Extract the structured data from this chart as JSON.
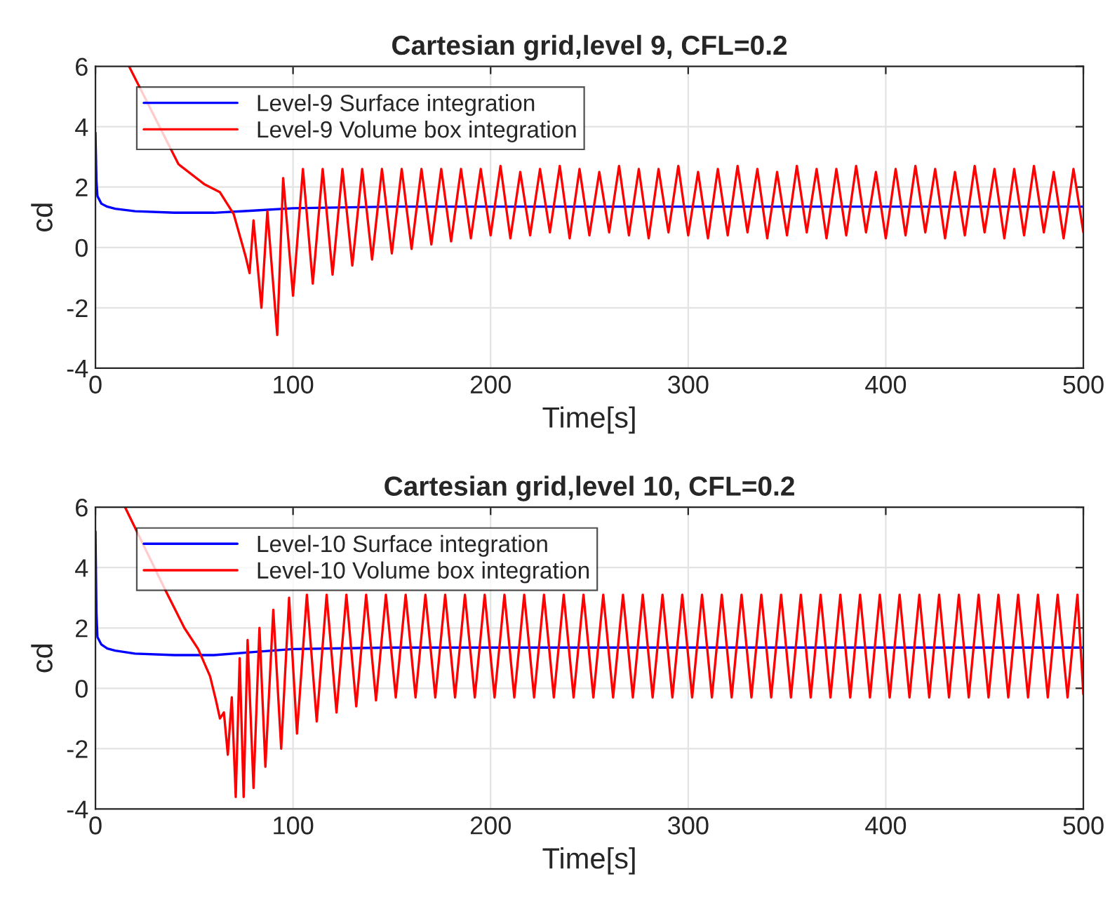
{
  "chart_data": [
    {
      "type": "line",
      "title": "Cartesian grid,level 9, CFL=0.2",
      "xlabel": "Time[s]",
      "ylabel": "cd",
      "xlim": [
        0,
        500
      ],
      "ylim": [
        -4,
        6
      ],
      "xticks": [
        0,
        100,
        200,
        300,
        400,
        500
      ],
      "yticks": [
        -4,
        -2,
        0,
        2,
        4,
        6
      ],
      "grid": true,
      "legend": "top left",
      "series": [
        {
          "name": "Level-9 Surface integration",
          "color": "#0000ff",
          "x": [
            0,
            0.5,
            1,
            3,
            6,
            10,
            20,
            40,
            60,
            80,
            100,
            150,
            200,
            300,
            400,
            500
          ],
          "values": [
            3.8,
            2.2,
            1.7,
            1.45,
            1.35,
            1.28,
            1.2,
            1.15,
            1.15,
            1.22,
            1.3,
            1.35,
            1.35,
            1.35,
            1.35,
            1.35
          ]
        },
        {
          "name": "Level-9 Volume box integration",
          "color": "#ff0000",
          "x": [
            17,
            30,
            42,
            55,
            63,
            70,
            74,
            76,
            78,
            80,
            84,
            87,
            92,
            95,
            100,
            105,
            110,
            115,
            120,
            125,
            130,
            135,
            140,
            145,
            150,
            155,
            160,
            165,
            170,
            175,
            180,
            185,
            190,
            195,
            200,
            205,
            210,
            215,
            220,
            225,
            230,
            235,
            240,
            245,
            250,
            255,
            260,
            265,
            270,
            275,
            280,
            285,
            290,
            295,
            300,
            305,
            310,
            315,
            320,
            325,
            330,
            335,
            340,
            345,
            350,
            355,
            360,
            365,
            370,
            375,
            380,
            385,
            390,
            395,
            400,
            405,
            410,
            415,
            420,
            425,
            430,
            435,
            440,
            445,
            450,
            455,
            460,
            465,
            470,
            475,
            480,
            485,
            490,
            495,
            500
          ],
          "values": [
            6,
            null,
            2.76,
            2.1,
            1.83,
            1.1,
            0.17,
            -0.3,
            -0.85,
            0.9,
            -2.0,
            1.2,
            -2.9,
            2.3,
            -1.6,
            2.6,
            -1.2,
            2.6,
            -0.9,
            2.6,
            -0.6,
            2.6,
            -0.4,
            2.6,
            -0.2,
            2.6,
            -0.05,
            2.6,
            0.1,
            2.6,
            0.2,
            2.6,
            0.3,
            2.6,
            0.4,
            2.7,
            0.3,
            2.5,
            0.4,
            2.6,
            0.5,
            2.7,
            0.3,
            2.6,
            0.4,
            2.5,
            0.5,
            2.7,
            0.4,
            2.6,
            0.3,
            2.6,
            0.5,
            2.7,
            0.4,
            2.5,
            0.3,
            2.6,
            0.4,
            2.7,
            0.5,
            2.6,
            0.3,
            2.5,
            0.4,
            2.7,
            0.5,
            2.6,
            0.3,
            2.6,
            0.4,
            2.7,
            0.5,
            2.5,
            0.3,
            2.6,
            0.4,
            2.7,
            0.5,
            2.6,
            0.3,
            2.5,
            0.4,
            2.7,
            0.5,
            2.6,
            0.3,
            2.6,
            0.4,
            2.7,
            0.5,
            2.5,
            0.3,
            2.6,
            0.5
          ]
        }
      ]
    },
    {
      "type": "line",
      "title": "Cartesian grid,level 10, CFL=0.2",
      "xlabel": "Time[s]",
      "ylabel": "cd",
      "xlim": [
        0,
        500
      ],
      "ylim": [
        -4,
        6
      ],
      "xticks": [
        0,
        100,
        200,
        300,
        400,
        500
      ],
      "yticks": [
        -4,
        -2,
        0,
        2,
        4,
        6
      ],
      "grid": true,
      "legend": "top left",
      "series": [
        {
          "name": "Level-10 Surface integration",
          "color": "#0000ff",
          "x": [
            0,
            0.5,
            1,
            3,
            6,
            10,
            20,
            40,
            60,
            80,
            100,
            150,
            200,
            300,
            400,
            500
          ],
          "values": [
            5.2,
            2.5,
            1.7,
            1.45,
            1.32,
            1.25,
            1.15,
            1.1,
            1.1,
            1.2,
            1.3,
            1.35,
            1.35,
            1.35,
            1.35,
            1.35
          ]
        },
        {
          "name": "Level-10 Volume box integration",
          "color": "#ff0000",
          "x": [
            15,
            25,
            35,
            45,
            52,
            58,
            61,
            63,
            65,
            67,
            69,
            71,
            73,
            75,
            77,
            80,
            83,
            86,
            90,
            94,
            98,
            102,
            107,
            112,
            117,
            122,
            127,
            132,
            137,
            142,
            147,
            152,
            157,
            162,
            167,
            172,
            177,
            182,
            187,
            192,
            197,
            202,
            207,
            212,
            217,
            222,
            227,
            232,
            237,
            242,
            247,
            252,
            257,
            262,
            267,
            272,
            277,
            282,
            287,
            292,
            297,
            302,
            307,
            312,
            317,
            322,
            327,
            332,
            337,
            342,
            347,
            352,
            357,
            362,
            367,
            372,
            377,
            382,
            387,
            392,
            397,
            402,
            407,
            412,
            417,
            422,
            427,
            432,
            437,
            442,
            447,
            452,
            457,
            462,
            467,
            472,
            477,
            482,
            487,
            492,
            497,
            500
          ],
          "values": [
            6,
            null,
            3.3,
            2.0,
            1.3,
            0.4,
            -0.4,
            -1.0,
            -0.8,
            -2.2,
            -0.3,
            -3.6,
            1.0,
            -3.6,
            1.6,
            -3.3,
            2.0,
            -2.6,
            2.6,
            -2.0,
            3.0,
            -1.5,
            3.1,
            -1.1,
            3.1,
            -0.8,
            3.1,
            -0.6,
            3.1,
            -0.4,
            3.1,
            -0.3,
            3.1,
            -0.3,
            3.1,
            -0.3,
            3.1,
            -0.3,
            3.1,
            -0.3,
            3.1,
            -0.3,
            3.1,
            -0.3,
            3.1,
            -0.3,
            3.1,
            -0.3,
            3.1,
            -0.3,
            3.1,
            -0.3,
            3.1,
            -0.3,
            3.1,
            -0.3,
            3.1,
            -0.3,
            3.1,
            -0.3,
            3.1,
            -0.3,
            3.1,
            -0.3,
            3.1,
            -0.3,
            3.1,
            -0.3,
            3.1,
            -0.3,
            3.1,
            -0.3,
            3.1,
            -0.3,
            3.1,
            -0.3,
            3.1,
            -0.3,
            3.1,
            -0.3,
            3.1,
            -0.3,
            3.1,
            -0.3,
            3.1,
            -0.3,
            3.1,
            -0.3,
            3.1,
            -0.3,
            3.1,
            -0.3,
            3.1,
            -0.3,
            3.1,
            -0.3,
            3.1,
            -0.3,
            3.1,
            -0.3,
            3.1,
            -0.2
          ]
        }
      ]
    }
  ]
}
